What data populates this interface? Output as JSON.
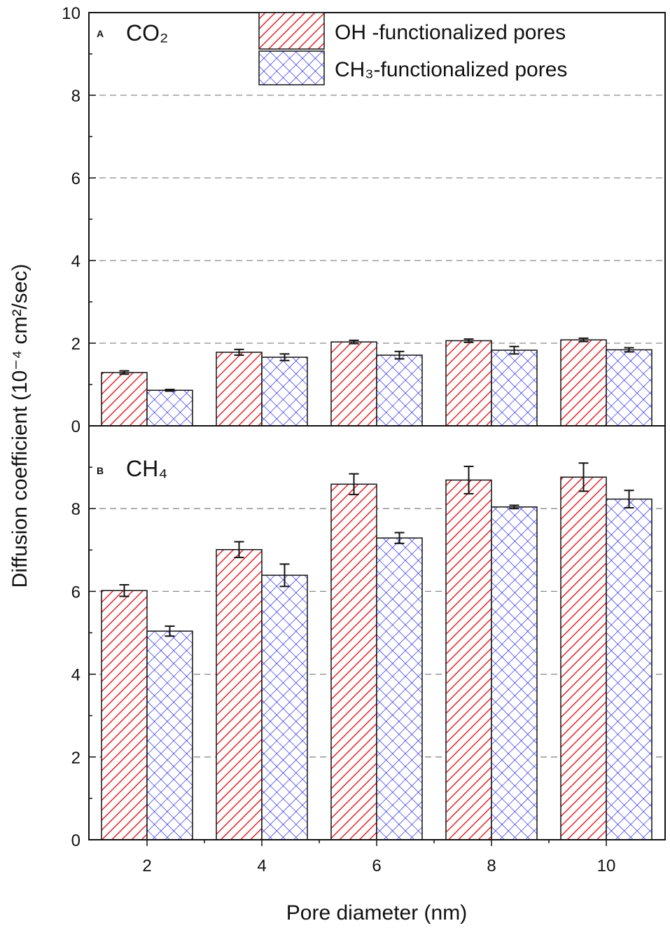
{
  "chart_data": {
    "type": "bar",
    "xlabel": "Pore diameter (nm)",
    "ylabel": "Diffusion coefficient (10⁻⁴ cm²/sec)",
    "categories": [
      "2",
      "4",
      "6",
      "8",
      "10"
    ],
    "legend": {
      "placement": "top-right",
      "entries": [
        {
          "name": "OH -functionalized pores",
          "color": "#e8242b",
          "pattern": "diagonal-hatch"
        },
        {
          "name": "CH₃-functionalized pores",
          "color": "#1a1ae6",
          "pattern": "cross-hatch"
        }
      ]
    },
    "panels": [
      {
        "letter": "A",
        "title": "CO₂",
        "ylim": [
          0,
          10
        ],
        "yticks": [
          "0",
          "2",
          "4",
          "6",
          "8",
          "10"
        ],
        "grid": "dashed",
        "series": [
          {
            "name": "OH -functionalized pores",
            "values": [
              1.29,
              1.78,
              2.03,
              2.06,
              2.08
            ],
            "errors": [
              0.04,
              0.07,
              0.04,
              0.04,
              0.04
            ]
          },
          {
            "name": "CH₃-functionalized pores",
            "values": [
              0.86,
              1.66,
              1.71,
              1.83,
              1.84
            ],
            "errors": [
              0.02,
              0.08,
              0.09,
              0.09,
              0.05
            ]
          }
        ]
      },
      {
        "letter": "B",
        "title": "CH₄",
        "ylim": [
          0,
          10
        ],
        "yticks": [
          "0",
          "2",
          "4",
          "6",
          "8"
        ],
        "grid": "dashed",
        "series": [
          {
            "name": "OH -functionalized pores",
            "values": [
              6.02,
              7.01,
              8.59,
              8.69,
              8.76
            ],
            "errors": [
              0.14,
              0.19,
              0.25,
              0.33,
              0.34
            ]
          },
          {
            "name": "CH₃-functionalized pores",
            "values": [
              5.04,
              6.39,
              7.29,
              8.04,
              8.23
            ],
            "errors": [
              0.12,
              0.27,
              0.13,
              0.04,
              0.21
            ]
          }
        ]
      }
    ]
  }
}
